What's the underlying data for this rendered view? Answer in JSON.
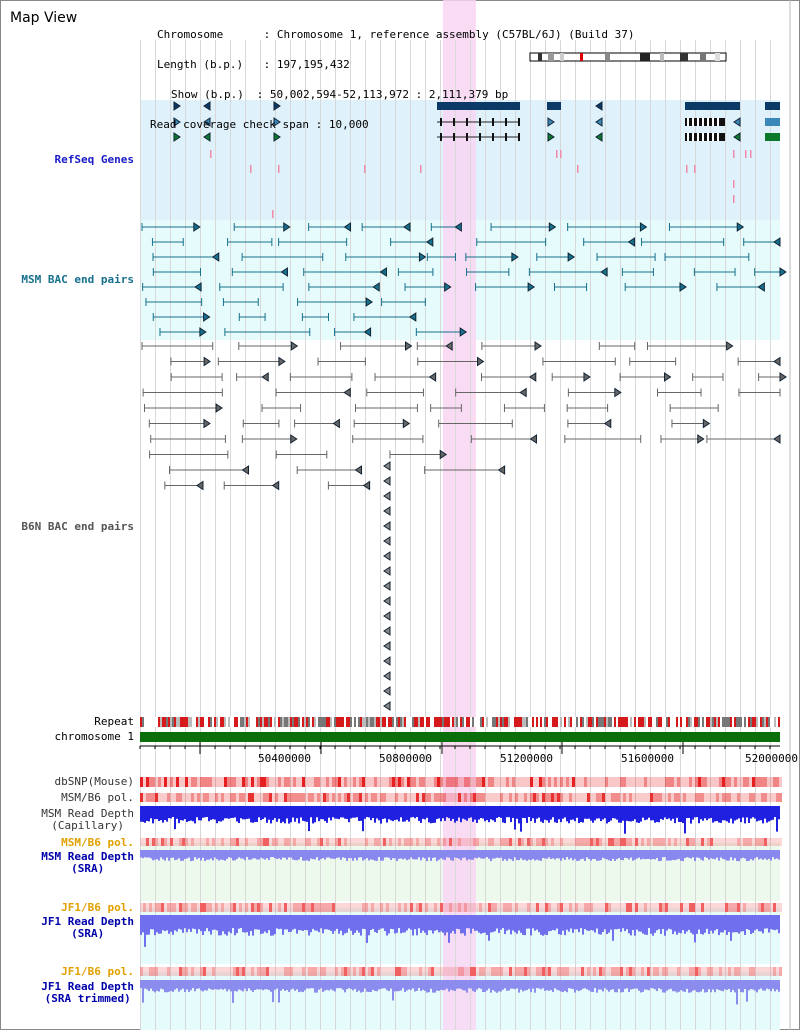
{
  "page": {
    "title": "Map View"
  },
  "info": {
    "chromosome_key": "Chromosome",
    "chromosome_val": "Chromosome 1, reference assembly (C57BL/6J) (Build 37)",
    "length_key": "Length (b.p.)",
    "length_val": "197,195,432",
    "show_key": "Show (b.p.)",
    "show_val": "50,002,594-52,113,972 : 2,111,379 bp",
    "coverage_key": "Read coverage check span",
    "coverage_val": "10,000"
  },
  "tracks": {
    "refseq": "RefSeq Genes",
    "msm_bac": "MSM BAC end pairs",
    "b6n_bac": "B6N BAC end pairs",
    "repeat": "Repeat",
    "chromosome": "chromosome 1",
    "dbsnp": "dbSNP(Mouse)",
    "msm_b6_pol": "MSM/B6 pol.",
    "msm_read_depth_cap": "MSM Read Depth\n(Capillary)",
    "msm_b6_pol_2": "MSM/B6 pol.",
    "msm_read_depth_sra": "MSM Read Depth\n(SRA)",
    "jf1_b6_pol": "JF1/B6 pol.",
    "jf1_read_depth_sra": "JF1 Read Depth\n(SRA)",
    "jf1_b6_pol_2": "JF1/B6 pol.",
    "jf1_read_depth_trim": "JF1 Read Depth\n(SRA trimmed)"
  },
  "axis": {
    "ticks": [
      "50400000",
      "50800000",
      "51200000",
      "51600000",
      "52000000"
    ]
  },
  "colors": {
    "refseq_bg": "#dff1fb",
    "msm_bg": "#e6fbfb",
    "highlight": "#f8d6f2",
    "refseq_label": "#1a1ac8",
    "msm_label": "#17708d",
    "b6n_label": "#555555",
    "chromosome_bar": "#0a6e0a",
    "orange_label": "#e0a000",
    "blue_label": "#0000aa"
  }
}
